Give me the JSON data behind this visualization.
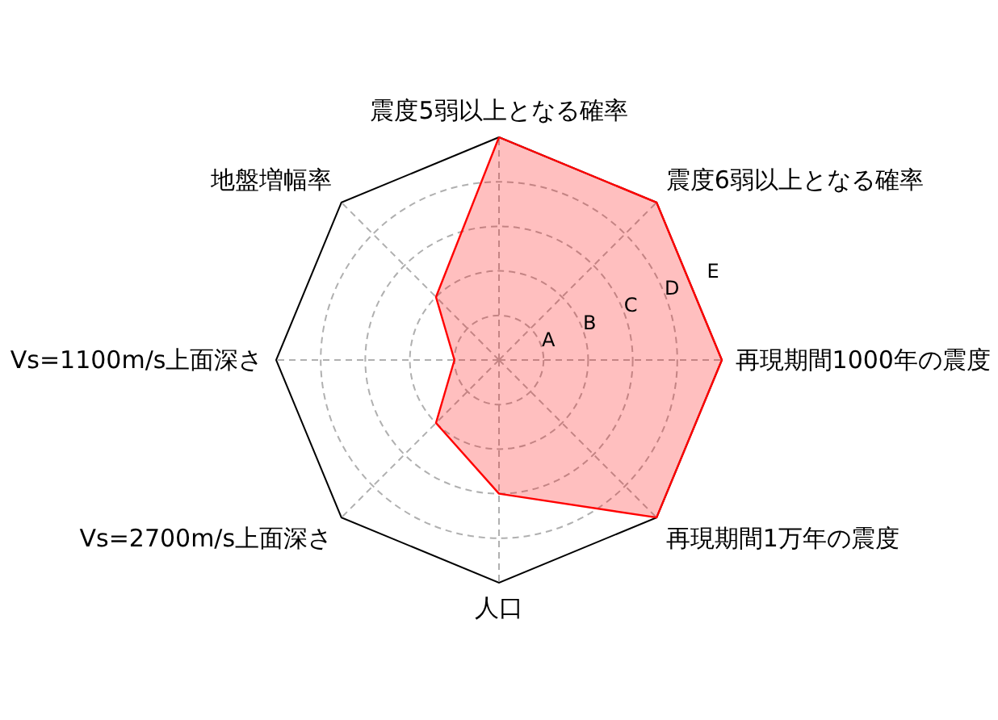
{
  "chart_data": {
    "type": "radar",
    "categories": [
      "震度5弱以上となる確率",
      "震度6弱以上となる確率",
      "再現期間1000年の震度",
      "再現期間1万年の震度",
      "人口",
      "Vs=2700m/s上面深さ",
      "Vs=1100m/s上面深さ",
      "地盤増幅率"
    ],
    "series": [
      {
        "color": "#ff0000",
        "values": [
          5,
          5,
          5,
          5,
          3,
          2,
          1,
          2
        ]
      }
    ],
    "ylim": [
      0,
      5
    ],
    "yticks": [
      {
        "value": 1,
        "label": "A"
      },
      {
        "value": 2,
        "label": "B"
      },
      {
        "value": 3,
        "label": "C"
      },
      {
        "value": 4,
        "label": "D"
      },
      {
        "value": 5,
        "label": "E"
      }
    ],
    "grid": true
  }
}
